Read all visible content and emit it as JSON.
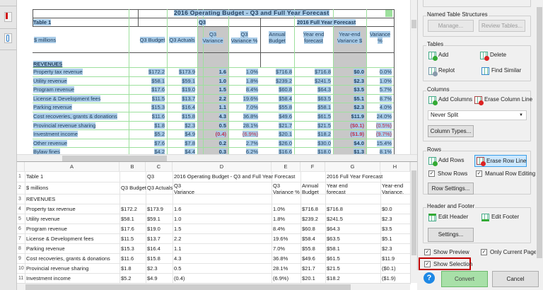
{
  "preview": {
    "title": "2016 Operating Budget - Q3 and Full Year Forecast",
    "table_label": "Table 1",
    "q3_group": "Q3",
    "fy_group": "2016 Full Year Forecast",
    "headers": [
      "$ millions",
      "Q3 Budget",
      "Q3 Actuals",
      "Q3 Variance",
      "Q3 Variance %",
      "Annual Budget",
      "Year end forecast",
      "Year-end Variance $",
      "Variance %"
    ],
    "section": "REVENUES",
    "rows": [
      [
        "Property tax revenue",
        "$172.2",
        "$173.9",
        "1.6",
        "1.0%",
        "$716.8",
        "$716.8",
        "$0.0",
        "0.0%"
      ],
      [
        "Utility revenue",
        "$58.1",
        "$59.1",
        "1.0",
        "1.8%",
        "$239.2",
        "$241.5",
        "$2.3",
        "1.0%"
      ],
      [
        "Program revenue",
        "$17.6",
        "$19.0",
        "1.5",
        "8.4%",
        "$60.8",
        "$64.3",
        "$3.5",
        "5.7%"
      ],
      [
        "License & Development fees",
        "$11.5",
        "$13.7",
        "2.2",
        "19.6%",
        "$58.4",
        "$63.5",
        "$5.1",
        "8.7%"
      ],
      [
        "Parking revenue",
        "$15.3",
        "$16.4",
        "1.1",
        "7.0%",
        "$55.8",
        "$58.1",
        "$2.3",
        "4.0%"
      ],
      [
        "Cost recoveries, grants & donations",
        "$11.6",
        "$15.8",
        "4.3",
        "36.8%",
        "$49.6",
        "$61.5",
        "$11.9",
        "24.0%"
      ],
      [
        "Provincial revenue sharing",
        "$1.8",
        "$2.3",
        "0.5",
        "28.1%",
        "$21.7",
        "$21.5",
        "($0.1)",
        "(0.5%)"
      ],
      [
        "Investment income",
        "$5.2",
        "$4.9",
        "(0.4)",
        "(6.9%)",
        "$20.1",
        "$18.2",
        "($1.9)",
        "(9.7%)"
      ],
      [
        "Other revenue",
        "$7.6",
        "$7.8",
        "0.2",
        "2.7%",
        "$26.0",
        "$30.0",
        "$4.0",
        "15.4%"
      ],
      [
        "Bylaw fines",
        "$4.2",
        "$4.4",
        "0.3",
        "6.2%",
        "$16.6",
        "$18.0",
        "$1.3",
        "8.1%"
      ]
    ]
  },
  "grid": {
    "columns": [
      "A",
      "B",
      "C",
      "D",
      "E",
      "F",
      "G",
      "H"
    ],
    "rows": [
      [
        "1",
        "Table 1",
        "",
        "Q3",
        "2016 Operating Budget - Q3 and Full Year Forecast",
        "",
        "",
        "2016 Full Year Forecast",
        ""
      ],
      [
        "2",
        "$ millions",
        "Q3 Budget",
        "Q3 Actuals",
        "Q3\nVariance",
        "Q3\nVariance %",
        "Annual\nBudget",
        "Year end\nforecast",
        "Year-end\nVariance."
      ],
      [
        "3",
        "REVENUES",
        "",
        "",
        "",
        "",
        "",
        "",
        ""
      ],
      [
        "4",
        "Property tax revenue",
        "$172.2",
        "$173.9",
        "1.6",
        "1.0%",
        "$716.8",
        "$716.8",
        "$0.0"
      ],
      [
        "5",
        "Utility revenue",
        "$58.1",
        "$59.1",
        "1.0",
        "1.8%",
        "$239.2",
        "$241.5",
        "$2.3"
      ],
      [
        "6",
        "Program revenue",
        "$17.6",
        "$19.0",
        "1.5",
        "8.4%",
        "$60.8",
        "$64.3",
        "$3.5"
      ],
      [
        "7",
        "License & Development fees",
        "$11.5",
        "$13.7",
        "2.2",
        "19.6%",
        "$58.4",
        "$63.5",
        "$5.1"
      ],
      [
        "8",
        "Parking revenue",
        "$15.3",
        "$16.4",
        "1.1",
        "7.0%",
        "$55.8",
        "$58.1",
        "$2.3"
      ],
      [
        "9",
        "Cost recoveries, grants & donations",
        "$11.6",
        "$15.8",
        "4.3",
        "36.8%",
        "$49.6",
        "$61.5",
        "$11.9"
      ],
      [
        "10",
        "Provincial revenue sharing",
        "$1.8",
        "$2.3",
        "0.5",
        "28.1%",
        "$21.7",
        "$21.5",
        "($0.1)"
      ],
      [
        "11",
        "Investment income",
        "$5.2",
        "$4.9",
        "(0.4)",
        "(6.9%)",
        "$20.1",
        "$18.2",
        "($1.9)"
      ]
    ]
  },
  "panel": {
    "named_title": "Named Table Structures",
    "manage": "Manage...",
    "review": "Review Tables...",
    "tables_title": "Tables",
    "add": "Add",
    "delete": "Delete",
    "replot": "Replot",
    "find_similar": "Find Similar",
    "columns_title": "Columns",
    "add_columns": "Add Columns",
    "erase_column_line": "Erase Column Line",
    "split_value": "Never Split",
    "column_types": "Column Types...",
    "rows_title": "Rows",
    "add_rows": "Add Rows",
    "erase_row_line": "Erase Row Line",
    "show_rows": "Show Rows",
    "manual_row_editing": "Manual Row Editing",
    "row_settings": "Row Settings...",
    "hf_title": "Header and Footer",
    "edit_header": "Edit Header",
    "edit_footer": "Edit Footer",
    "settings": "Settings...",
    "show_preview": "Show Preview",
    "only_current_page": "Only Current Page",
    "show_selection": "Show Selection",
    "convert": "Convert",
    "cancel": "Cancel",
    "help": "?"
  },
  "colors": {
    "selection": "#a9cce8",
    "negative": "#c0304a",
    "highlight_box": "#c00000",
    "convert": "#a8e0a8"
  }
}
